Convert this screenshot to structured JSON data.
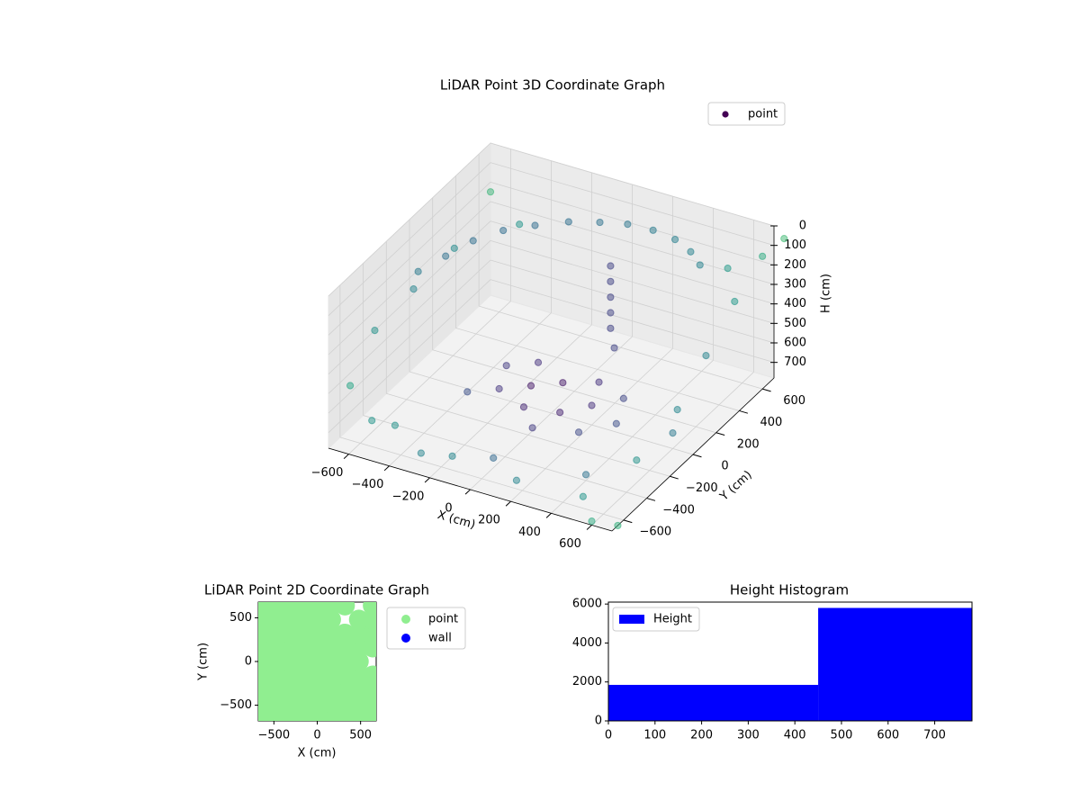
{
  "chart_data": [
    {
      "type": "scatter3d",
      "title": "LiDAR Point 3D Coordinate Graph",
      "xlabel": "X (cm)",
      "ylabel": "Y (cm)",
      "zlabel": "H (cm)",
      "xlim": [
        -700,
        700
      ],
      "ylim": [
        -700,
        700
      ],
      "zlim": [
        780,
        0
      ],
      "xticks": [
        {
          "value": -600,
          "label": "−600"
        },
        {
          "value": -400,
          "label": "−400"
        },
        {
          "value": -200,
          "label": "−200"
        },
        0,
        200,
        400,
        600
      ],
      "yticks": [
        {
          "value": -600,
          "label": "−600"
        },
        {
          "value": -400,
          "label": "−400"
        },
        {
          "value": -200,
          "label": "−200"
        },
        0,
        200,
        400,
        600
      ],
      "zticks": [
        0,
        100,
        200,
        300,
        400,
        500,
        600,
        700
      ],
      "grid": true,
      "legend": "upper right",
      "series": [
        {
          "name": "point",
          "color": "#440154",
          "x": [
            -600,
            -550,
            -500,
            -420,
            -320,
            -200,
            -80,
            40,
            160,
            280,
            380,
            460,
            150,
            150,
            150,
            150,
            150,
            180,
            -300,
            -200,
            -100,
            0,
            100,
            200,
            -150,
            50,
            250,
            300,
            -50,
            150,
            -250,
            350,
            -650,
            -700,
            -680,
            -650,
            -400,
            -100,
            200,
            500,
            650,
            680,
            650,
            620,
            500,
            -600,
            -300,
            0,
            400,
            600,
            700,
            750,
            -700,
            -500,
            600,
            700
          ],
          "y": [
            -100,
            50,
            200,
            320,
            420,
            500,
            560,
            590,
            600,
            580,
            540,
            480,
            250,
            250,
            250,
            250,
            250,
            230,
            -200,
            -100,
            0,
            100,
            -100,
            0,
            150,
            -250,
            -200,
            100,
            -150,
            150,
            50,
            -50,
            -600,
            -300,
            0,
            300,
            -650,
            -680,
            -650,
            -600,
            -400,
            -100,
            200,
            500,
            650,
            -500,
            -600,
            -500,
            -400,
            0,
            600,
            700,
            700,
            600,
            -700,
            -650
          ],
          "z": [
            180,
            170,
            160,
            150,
            150,
            140,
            140,
            130,
            130,
            130,
            140,
            150,
            120,
            200,
            280,
            360,
            440,
            520,
            650,
            660,
            670,
            680,
            690,
            680,
            650,
            700,
            690,
            670,
            680,
            660,
            640,
            700,
            500,
            400,
            350,
            300,
            600,
            650,
            700,
            720,
            600,
            500,
            400,
            300,
            250,
            720,
            740,
            730,
            750,
            700,
            100,
            50,
            250,
            300,
            760,
            780
          ]
        }
      ]
    },
    {
      "type": "scatter",
      "title": "LiDAR Point 2D Coordinate Graph",
      "xlabel": "X (cm)",
      "ylabel": "Y (cm)",
      "xlim": [
        -680,
        680
      ],
      "ylim": [
        -680,
        680
      ],
      "xticks": [
        {
          "value": -500,
          "label": "−500"
        },
        0,
        500
      ],
      "yticks": [
        {
          "value": -500,
          "label": "−500"
        },
        0,
        500
      ],
      "legend": "outside right",
      "series": [
        {
          "name": "point",
          "color": "#90ee90",
          "x": [
            -640,
            -480,
            -320,
            -160,
            0,
            160,
            320,
            480,
            640,
            -640,
            -480,
            -320,
            -160,
            0,
            160,
            320,
            480,
            640,
            -640,
            -480,
            -320,
            -160,
            0,
            160,
            320,
            480,
            640,
            -640,
            -480,
            -320,
            -160,
            0,
            160,
            320,
            480,
            640,
            -640,
            -480,
            -320,
            -160,
            0,
            160,
            320,
            480,
            -640,
            -480,
            -320,
            -160,
            0,
            160,
            320,
            480,
            640,
            -640,
            -480,
            -320,
            -160,
            0,
            160,
            320,
            480,
            640,
            -640,
            -480,
            -320,
            -160,
            0,
            160,
            480,
            640,
            -640,
            -480,
            -320,
            -160,
            0,
            160,
            320,
            640
          ],
          "y": [
            -640,
            -640,
            -640,
            -640,
            -640,
            -640,
            -640,
            -640,
            -640,
            -480,
            -480,
            -480,
            -480,
            -480,
            -480,
            -480,
            -480,
            -480,
            -320,
            -320,
            -320,
            -320,
            -320,
            -320,
            -320,
            -320,
            -320,
            -160,
            -160,
            -160,
            -160,
            -160,
            -160,
            -160,
            -160,
            -160,
            0,
            0,
            0,
            0,
            0,
            0,
            0,
            0,
            160,
            160,
            160,
            160,
            160,
            160,
            160,
            160,
            160,
            320,
            320,
            320,
            320,
            320,
            320,
            320,
            320,
            320,
            480,
            480,
            480,
            480,
            480,
            480,
            480,
            480,
            640,
            640,
            640,
            640,
            640,
            640,
            640,
            640
          ]
        },
        {
          "name": "wall",
          "color": "#0000ff",
          "x": [],
          "y": []
        }
      ]
    },
    {
      "type": "histogram",
      "title": "Height Histogram",
      "bins": [
        0,
        450,
        780
      ],
      "values": [
        1850,
        5800
      ],
      "color": "#0000ff",
      "name": "Height",
      "xlim": [
        0,
        780
      ],
      "ylim": [
        0,
        6100
      ],
      "xticks": [
        0,
        100,
        200,
        300,
        400,
        500,
        600,
        700
      ],
      "yticks": [
        0,
        2000,
        4000,
        6000
      ],
      "legend": "upper left"
    }
  ]
}
